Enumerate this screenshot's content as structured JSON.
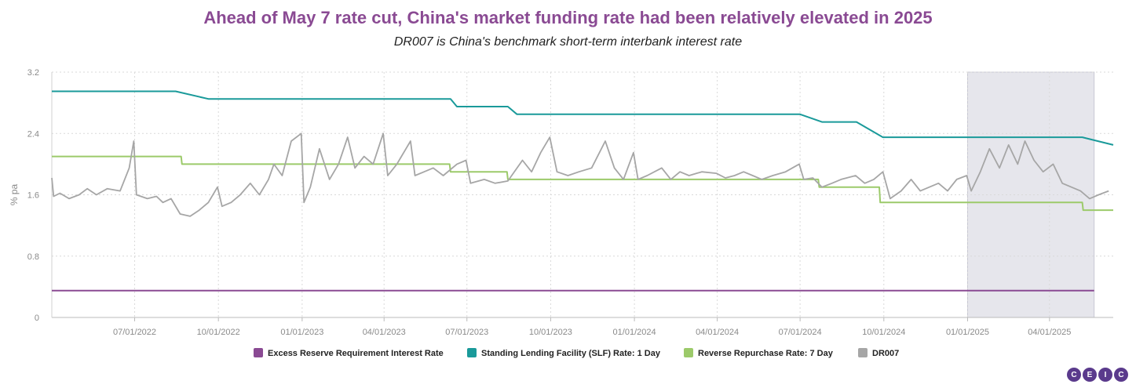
{
  "title": "Ahead of May 7 rate cut, China's market funding rate had been relatively elevated in 2025",
  "subtitle": "DR007 is China's benchmark short-term interbank interest rate",
  "logo_text": [
    "C",
    "E",
    "I",
    "C"
  ],
  "chart_data": {
    "type": "line",
    "ylabel": "% pa",
    "ylim": [
      0,
      3.2
    ],
    "yticks": [
      "0",
      "0.8",
      "1.6",
      "2.4",
      "3.2"
    ],
    "xlim": [
      "2022-04-01",
      "2025-06-10"
    ],
    "xticks": [
      "07/01/2022",
      "10/01/2022",
      "01/01/2023",
      "04/01/2023",
      "07/01/2023",
      "10/01/2023",
      "01/01/2024",
      "04/01/2024",
      "07/01/2024",
      "10/01/2024",
      "01/01/2025",
      "04/01/2025"
    ],
    "shaded_region": [
      "2025-01-01",
      "2025-05-20"
    ],
    "grid": true,
    "legend_position": "bottom",
    "colors": {
      "err": "#8a4a93",
      "slf": "#1a9a9a",
      "rrp": "#9cca6a",
      "dr": "#a6a6a6",
      "grid": "#d9d9d9",
      "shade": "#e6e6ec"
    },
    "series": [
      {
        "name": "Excess Reserve Requirement Interest Rate",
        "key": "err",
        "points": [
          [
            "2022-04-01",
            0.35
          ],
          [
            "2025-05-20",
            0.35
          ]
        ]
      },
      {
        "name": "Standing Lending Facility (SLF) Rate: 1 Day",
        "key": "slf",
        "points": [
          [
            "2022-04-01",
            2.95
          ],
          [
            "2022-08-15",
            2.95
          ],
          [
            "2022-09-20",
            2.85
          ],
          [
            "2023-06-13",
            2.85
          ],
          [
            "2023-06-20",
            2.75
          ],
          [
            "2023-08-15",
            2.75
          ],
          [
            "2023-08-25",
            2.65
          ],
          [
            "2024-07-01",
            2.65
          ],
          [
            "2024-07-25",
            2.55
          ],
          [
            "2024-09-01",
            2.55
          ],
          [
            "2024-09-30",
            2.35
          ],
          [
            "2025-05-07",
            2.35
          ],
          [
            "2025-06-10",
            2.25
          ]
        ]
      },
      {
        "name": "Reverse Repurchase Rate: 7 Day",
        "key": "rrp",
        "points": [
          [
            "2022-04-01",
            2.1
          ],
          [
            "2022-08-21",
            2.1
          ],
          [
            "2022-08-22",
            2.0
          ],
          [
            "2023-06-12",
            2.0
          ],
          [
            "2023-06-13",
            1.9
          ],
          [
            "2023-08-14",
            1.9
          ],
          [
            "2023-08-15",
            1.8
          ],
          [
            "2024-07-21",
            1.8
          ],
          [
            "2024-07-22",
            1.7
          ],
          [
            "2024-09-26",
            1.7
          ],
          [
            "2024-09-27",
            1.5
          ],
          [
            "2025-05-07",
            1.5
          ],
          [
            "2025-05-08",
            1.4
          ],
          [
            "2025-06-10",
            1.4
          ]
        ]
      },
      {
        "name": "DR007",
        "key": "dr",
        "points": [
          [
            "2022-04-01",
            1.82
          ],
          [
            "2022-04-03",
            1.58
          ],
          [
            "2022-04-10",
            1.62
          ],
          [
            "2022-04-20",
            1.55
          ],
          [
            "2022-05-01",
            1.6
          ],
          [
            "2022-05-10",
            1.68
          ],
          [
            "2022-05-20",
            1.6
          ],
          [
            "2022-06-01",
            1.68
          ],
          [
            "2022-06-15",
            1.65
          ],
          [
            "2022-06-25",
            1.95
          ],
          [
            "2022-06-30",
            2.3
          ],
          [
            "2022-07-03",
            1.6
          ],
          [
            "2022-07-15",
            1.55
          ],
          [
            "2022-07-25",
            1.58
          ],
          [
            "2022-08-01",
            1.5
          ],
          [
            "2022-08-10",
            1.55
          ],
          [
            "2022-08-20",
            1.35
          ],
          [
            "2022-08-31",
            1.32
          ],
          [
            "2022-09-10",
            1.4
          ],
          [
            "2022-09-20",
            1.5
          ],
          [
            "2022-09-30",
            1.7
          ],
          [
            "2022-10-05",
            1.45
          ],
          [
            "2022-10-15",
            1.5
          ],
          [
            "2022-10-25",
            1.6
          ],
          [
            "2022-11-05",
            1.75
          ],
          [
            "2022-11-15",
            1.6
          ],
          [
            "2022-11-25",
            1.8
          ],
          [
            "2022-12-01",
            2.0
          ],
          [
            "2022-12-10",
            1.85
          ],
          [
            "2022-12-20",
            2.3
          ],
          [
            "2022-12-31",
            2.4
          ],
          [
            "2023-01-03",
            1.5
          ],
          [
            "2023-01-10",
            1.7
          ],
          [
            "2023-01-20",
            2.2
          ],
          [
            "2023-01-31",
            1.8
          ],
          [
            "2023-02-10",
            2.0
          ],
          [
            "2023-02-20",
            2.35
          ],
          [
            "2023-02-28",
            1.95
          ],
          [
            "2023-03-10",
            2.1
          ],
          [
            "2023-03-20",
            2.0
          ],
          [
            "2023-03-31",
            2.4
          ],
          [
            "2023-04-05",
            1.85
          ],
          [
            "2023-04-15",
            2.0
          ],
          [
            "2023-04-25",
            2.2
          ],
          [
            "2023-04-30",
            2.3
          ],
          [
            "2023-05-05",
            1.85
          ],
          [
            "2023-05-15",
            1.9
          ],
          [
            "2023-05-25",
            1.95
          ],
          [
            "2023-06-05",
            1.85
          ],
          [
            "2023-06-20",
            2.0
          ],
          [
            "2023-06-30",
            2.05
          ],
          [
            "2023-07-05",
            1.75
          ],
          [
            "2023-07-20",
            1.8
          ],
          [
            "2023-08-01",
            1.75
          ],
          [
            "2023-08-15",
            1.78
          ],
          [
            "2023-08-31",
            2.05
          ],
          [
            "2023-09-10",
            1.9
          ],
          [
            "2023-09-20",
            2.15
          ],
          [
            "2023-09-30",
            2.35
          ],
          [
            "2023-10-08",
            1.9
          ],
          [
            "2023-10-20",
            1.85
          ],
          [
            "2023-11-01",
            1.9
          ],
          [
            "2023-11-15",
            1.95
          ],
          [
            "2023-11-30",
            2.3
          ],
          [
            "2023-12-10",
            1.95
          ],
          [
            "2023-12-20",
            1.8
          ],
          [
            "2023-12-31",
            2.15
          ],
          [
            "2024-01-05",
            1.8
          ],
          [
            "2024-01-15",
            1.85
          ],
          [
            "2024-01-31",
            1.95
          ],
          [
            "2024-02-10",
            1.8
          ],
          [
            "2024-02-20",
            1.9
          ],
          [
            "2024-03-01",
            1.85
          ],
          [
            "2024-03-15",
            1.9
          ],
          [
            "2024-03-31",
            1.88
          ],
          [
            "2024-04-10",
            1.82
          ],
          [
            "2024-04-20",
            1.85
          ],
          [
            "2024-04-30",
            1.9
          ],
          [
            "2024-05-10",
            1.85
          ],
          [
            "2024-05-20",
            1.8
          ],
          [
            "2024-06-01",
            1.85
          ],
          [
            "2024-06-15",
            1.9
          ],
          [
            "2024-06-30",
            2.0
          ],
          [
            "2024-07-05",
            1.8
          ],
          [
            "2024-07-15",
            1.82
          ],
          [
            "2024-07-25",
            1.7
          ],
          [
            "2024-08-05",
            1.75
          ],
          [
            "2024-08-15",
            1.8
          ],
          [
            "2024-08-31",
            1.85
          ],
          [
            "2024-09-10",
            1.75
          ],
          [
            "2024-09-20",
            1.8
          ],
          [
            "2024-09-30",
            1.9
          ],
          [
            "2024-10-08",
            1.55
          ],
          [
            "2024-10-20",
            1.65
          ],
          [
            "2024-10-31",
            1.8
          ],
          [
            "2024-11-10",
            1.65
          ],
          [
            "2024-11-20",
            1.7
          ],
          [
            "2024-11-30",
            1.75
          ],
          [
            "2024-12-10",
            1.65
          ],
          [
            "2024-12-20",
            1.8
          ],
          [
            "2024-12-31",
            1.85
          ],
          [
            "2025-01-05",
            1.65
          ],
          [
            "2025-01-15",
            1.9
          ],
          [
            "2025-01-25",
            2.2
          ],
          [
            "2025-02-05",
            1.95
          ],
          [
            "2025-02-15",
            2.25
          ],
          [
            "2025-02-25",
            2.0
          ],
          [
            "2025-03-05",
            2.3
          ],
          [
            "2025-03-15",
            2.05
          ],
          [
            "2025-03-25",
            1.9
          ],
          [
            "2025-04-05",
            2.0
          ],
          [
            "2025-04-15",
            1.75
          ],
          [
            "2025-04-25",
            1.7
          ],
          [
            "2025-05-05",
            1.65
          ],
          [
            "2025-05-15",
            1.55
          ],
          [
            "2025-05-25",
            1.6
          ],
          [
            "2025-06-05",
            1.65
          ]
        ]
      }
    ]
  }
}
